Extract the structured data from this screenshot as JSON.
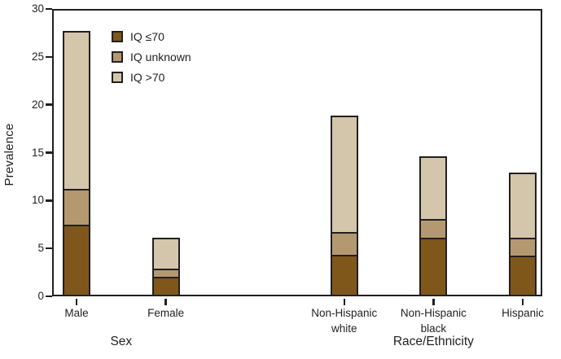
{
  "chart_data": {
    "type": "bar",
    "stacked": true,
    "title": "",
    "ylabel": "Prevalence",
    "xlabel": "",
    "ylim": [
      0,
      30
    ],
    "yticks": [
      0,
      5,
      10,
      15,
      20,
      25,
      30
    ],
    "grid": false,
    "legend_position": "top-left-inside",
    "categories": [
      {
        "label": "Male",
        "lines": [
          "Male"
        ],
        "group": "Sex",
        "slot": 0
      },
      {
        "label": "Female",
        "lines": [
          "Female"
        ],
        "group": "Sex",
        "slot": 1
      },
      {
        "label": "Non-Hispanic white",
        "lines": [
          "Non-Hispanic",
          "white"
        ],
        "group": "Race/Ethnicity",
        "slot": 3
      },
      {
        "label": "Non-Hispanic black",
        "lines": [
          "Non-Hispanic",
          "black"
        ],
        "group": "Race/Ethnicity",
        "slot": 4
      },
      {
        "label": "Hispanic",
        "lines": [
          "Hispanic"
        ],
        "group": "Race/Ethnicity",
        "slot": 5
      }
    ],
    "series": [
      {
        "name": "IQ ≤70",
        "color": "#7f571b",
        "values": [
          7.3,
          1.9,
          4.1,
          6.1,
          4.1
        ]
      },
      {
        "name": "IQ unknown",
        "color": "#b49970",
        "values": [
          3.7,
          0.8,
          2.3,
          1.8,
          1.8
        ]
      },
      {
        "name": "IQ >70",
        "color": "#d4c6ab",
        "values": [
          16.7,
          3.4,
          12.5,
          6.7,
          7.0
        ]
      }
    ],
    "totals": [
      27.7,
      6.1,
      18.9,
      14.6,
      12.9
    ],
    "group_axis_labels": [
      {
        "label": "Sex",
        "center_slots": [
          0,
          1
        ]
      },
      {
        "label": "Race/Ethnicity",
        "center_slots": [
          4
        ]
      }
    ],
    "colors": {
      "axis": "#231f20",
      "text": "#231f20",
      "background": "#ffffff",
      "bar_border": "#231f20"
    }
  }
}
